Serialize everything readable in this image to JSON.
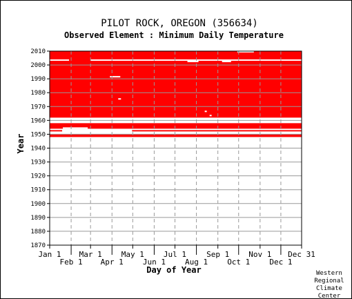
{
  "chart_data": {
    "type": "heatmap",
    "title": "PILOT ROCK, OREGON   (356634)",
    "subtitle": "Observed Element : Minimum Daily Temperature",
    "xlabel": "Day of Year",
    "ylabel": "Year",
    "xlim": [
      1,
      365
    ],
    "ylim": [
      1870,
      2010
    ],
    "grid": true,
    "y_ticks": [
      1870,
      1880,
      1890,
      1900,
      1910,
      1920,
      1930,
      1940,
      1950,
      1960,
      1970,
      1980,
      1990,
      2000,
      2010
    ],
    "x_ticks": [
      {
        "label": "Jan 1",
        "day": 1,
        "row": 1
      },
      {
        "label": "Feb 1",
        "day": 32,
        "row": 2
      },
      {
        "label": "Mar 1",
        "day": 60,
        "row": 1
      },
      {
        "label": "Apr 1",
        "day": 91,
        "row": 2
      },
      {
        "label": "May 1",
        "day": 121,
        "row": 1
      },
      {
        "label": "Jun 1",
        "day": 152,
        "row": 2
      },
      {
        "label": "Jul 1",
        "day": 182,
        "row": 1
      },
      {
        "label": "Aug 1",
        "day": 213,
        "row": 2
      },
      {
        "label": "Sep 1",
        "day": 244,
        "row": 1
      },
      {
        "label": "Oct 1",
        "day": 274,
        "row": 2
      },
      {
        "label": "Nov 1",
        "day": 305,
        "row": 1
      },
      {
        "label": "Dec 1",
        "day": 335,
        "row": 2
      },
      {
        "label": "Dec 31",
        "day": 365,
        "row": 1
      }
    ],
    "data_color": "#ff0000",
    "coverage": [
      {
        "year_start": 1962,
        "year_end": 2010,
        "day_start": 1,
        "day_end": 365
      },
      {
        "year_start": 1954,
        "year_end": 1958,
        "day_start": 1,
        "day_end": 365
      },
      {
        "year_start": 1952,
        "year_end": 1953,
        "day_start": 1,
        "day_end": 18
      },
      {
        "year_start": 1952,
        "year_end": 1953,
        "day_start": 120,
        "day_end": 365
      },
      {
        "year_start": 1948,
        "year_end": 1950,
        "day_start": 1,
        "day_end": 365
      }
    ],
    "gaps": [
      {
        "year_start": 2003,
        "year_end": 2004,
        "day_start": 1,
        "day_end": 28
      },
      {
        "year_start": 2003,
        "year_end": 2004,
        "day_start": 60,
        "day_end": 365
      },
      {
        "year_start": 2002,
        "year_end": 2003,
        "day_start": 200,
        "day_end": 215
      },
      {
        "year_start": 2002,
        "year_end": 2003,
        "day_start": 250,
        "day_end": 262
      },
      {
        "year_start": 2009,
        "year_end": 2010,
        "day_start": 272,
        "day_end": 295
      },
      {
        "year_start": 1991,
        "year_end": 1992,
        "day_start": 88,
        "day_end": 102
      },
      {
        "year_start": 1975,
        "year_end": 1976,
        "day_start": 100,
        "day_end": 103
      },
      {
        "year_start": 1966,
        "year_end": 1967,
        "day_start": 225,
        "day_end": 227
      },
      {
        "year_start": 1963,
        "year_end": 1964,
        "day_start": 232,
        "day_end": 234
      },
      {
        "year_start": 1951,
        "year_end": 1952,
        "day_start": 1,
        "day_end": 365
      },
      {
        "year_start": 1950,
        "year_end": 1951,
        "day_start": 195,
        "day_end": 225
      },
      {
        "year_start": 1954,
        "year_end": 1955,
        "day_start": 20,
        "day_end": 55
      }
    ]
  },
  "credit": [
    "Western",
    "Regional",
    "Climate",
    "Center"
  ]
}
